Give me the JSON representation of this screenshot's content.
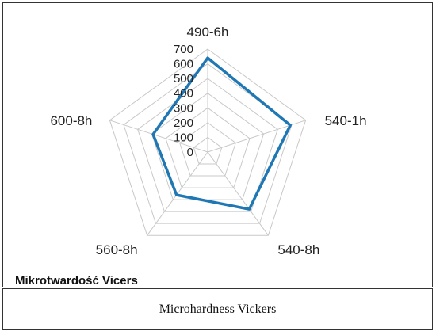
{
  "chart_data": {
    "type": "radar",
    "categories": [
      "490-6h",
      "540-1h",
      "540-8h",
      "560-8h",
      "600-8h"
    ],
    "series": [
      {
        "name": "",
        "values": [
          640,
          590,
          480,
          360,
          390
        ],
        "color": "#1f77b4"
      }
    ],
    "rlim": [
      0,
      700
    ],
    "ticks": [
      "0",
      "100",
      "200",
      "300",
      "400",
      "500",
      "600",
      "700"
    ],
    "grid": true,
    "title": "Mikrotwardość  Vicers"
  },
  "caption": "Microhardness Vickers",
  "colors": {
    "series": "#1f77b4",
    "grid": "#c8c8c8",
    "border": "#333333"
  }
}
